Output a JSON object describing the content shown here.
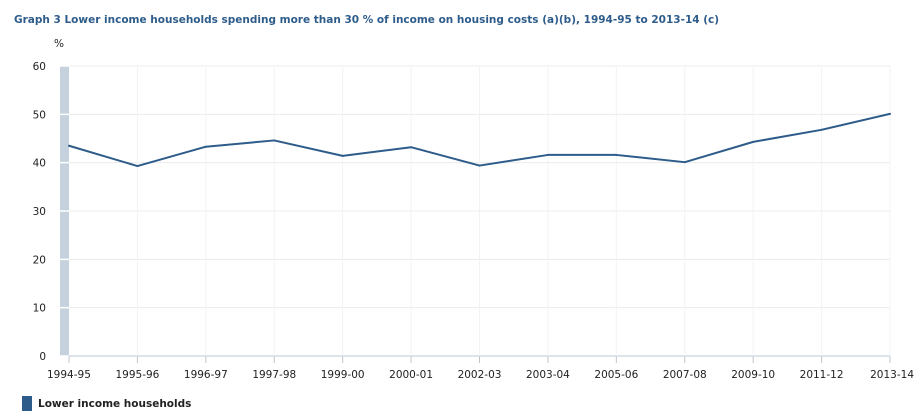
{
  "chart_data": {
    "type": "line",
    "title": "Graph 3 Lower income households spending more than 30 % of income on housing costs (a)(b), 1994-95 to 2013-14 (c)",
    "ylabel": "%",
    "xlabel": "",
    "ylim": [
      0,
      60
    ],
    "yticks": [
      0,
      10,
      20,
      30,
      40,
      50,
      60
    ],
    "grid": true,
    "legend_position": "bottom-left",
    "categories": [
      "1994-95",
      "1995-96",
      "1996-97",
      "1997-98",
      "1999-00",
      "2000-01",
      "2002-03",
      "2003-04",
      "2005-06",
      "2007-08",
      "2009-10",
      "2011-12",
      "2013-14"
    ],
    "series": [
      {
        "name": "Lower income households",
        "color": "#2e5c8a",
        "values": [
          43.5,
          39.3,
          43.3,
          44.6,
          41.4,
          43.2,
          39.4,
          41.6,
          41.6,
          40.1,
          44.3,
          46.8,
          50.1
        ]
      }
    ]
  }
}
